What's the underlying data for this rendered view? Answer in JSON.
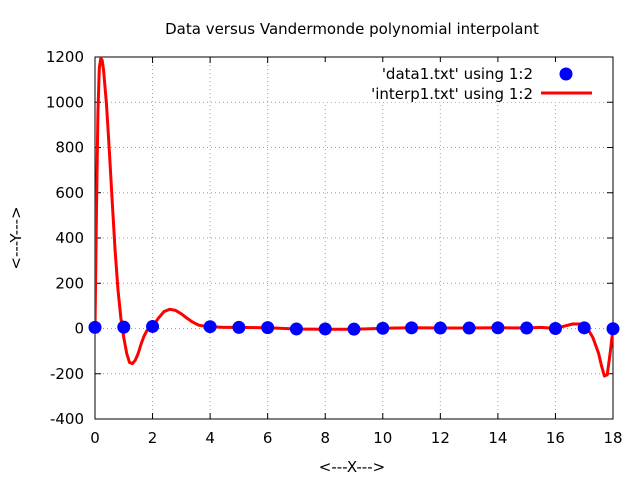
{
  "chart_data": {
    "type": "scatter",
    "title": "Data versus Vandermonde polynomial interpolant",
    "xlabel": "<---X--->",
    "ylabel": "<---Y--->",
    "xlim": [
      0,
      18
    ],
    "ylim": [
      -400,
      1200
    ],
    "xticks": [
      "0",
      "2",
      "4",
      "6",
      "8",
      "10",
      "12",
      "14",
      "16",
      "18"
    ],
    "yticks": [
      "-400",
      "-200",
      "0",
      "200",
      "400",
      "600",
      "800",
      "1000",
      "1200"
    ],
    "grid": true,
    "legend_position": "top-right",
    "series": [
      {
        "name": "'data1.txt' using 1:2",
        "kind": "points",
        "color": "#0000ff",
        "x": [
          0,
          1,
          2,
          4,
          5,
          6,
          7,
          8,
          9,
          10,
          11,
          12,
          13,
          14,
          15,
          16,
          17,
          18
        ],
        "y": [
          5,
          6,
          9,
          8,
          5,
          4,
          -2,
          -2,
          -3,
          1,
          3,
          2,
          2,
          3,
          2,
          0,
          3,
          -1
        ]
      },
      {
        "name": "'interp1.txt' using 1:2",
        "kind": "line",
        "color": "#ff0000",
        "x": [
          0,
          0.05,
          0.1,
          0.15,
          0.2,
          0.25,
          0.3,
          0.4,
          0.5,
          0.6,
          0.7,
          0.8,
          0.9,
          1.0,
          1.1,
          1.2,
          1.3,
          1.4,
          1.5,
          1.6,
          1.7,
          1.8,
          1.9,
          2.0,
          2.2,
          2.4,
          2.6,
          2.8,
          3.0,
          3.2,
          3.4,
          3.6,
          3.8,
          4.0,
          4.5,
          5.0,
          6.0,
          7.0,
          8.0,
          9.0,
          10.0,
          11.0,
          12.0,
          13.0,
          14.0,
          15.0,
          15.5,
          16.0,
          16.3,
          16.6,
          16.9,
          17.1,
          17.3,
          17.5,
          17.6,
          17.7,
          17.8,
          17.9,
          18.0
        ],
        "y": [
          0,
          500,
          950,
          1150,
          1195,
          1185,
          1140,
          990,
          780,
          555,
          345,
          170,
          45,
          -40,
          -110,
          -150,
          -155,
          -140,
          -110,
          -70,
          -35,
          -10,
          5,
          9,
          45,
          75,
          85,
          80,
          65,
          45,
          28,
          15,
          10,
          8,
          5,
          5,
          3,
          -2,
          -3,
          -3,
          1,
          3,
          2,
          2,
          3,
          2,
          5,
          0,
          10,
          20,
          20,
          3,
          -40,
          -110,
          -165,
          -210,
          -205,
          -110,
          -1
        ]
      }
    ]
  }
}
